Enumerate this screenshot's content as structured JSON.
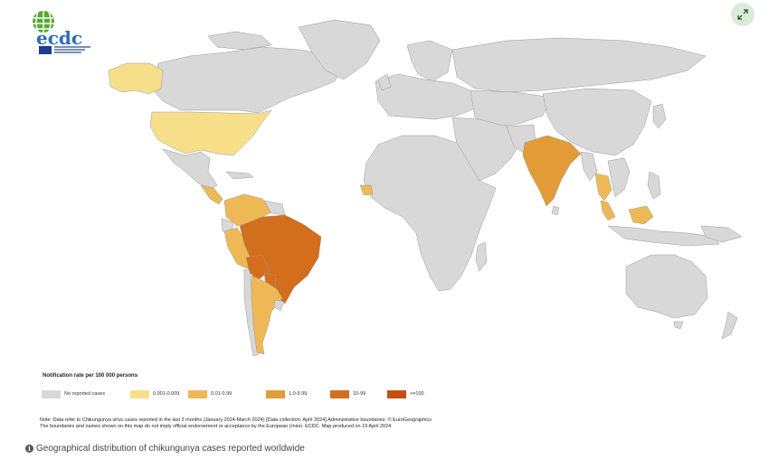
{
  "logo": {
    "text": "ecdc",
    "icon": "ecdc-globe-logo"
  },
  "expand_button": {
    "icon": "expand-arrows-icon"
  },
  "colors": {
    "no_data": "#d8d8d8",
    "border": "#9a9a9a",
    "rate_0001_0009": "#f7df8a",
    "rate_001_099": "#eeb955",
    "rate_10_999": "#e29b37",
    "rate_10_99": "#d36e1c",
    "rate_100_plus": "#c54e14"
  },
  "legend": {
    "title": "Notification rate per 100 000 persons",
    "items": [
      {
        "label": "No reported cases",
        "color": "#d8d8d8"
      },
      {
        "label": "0.001-0.009",
        "color": "#f7df8a"
      },
      {
        "label": "0.01-0.99",
        "color": "#eeb955"
      },
      {
        "label": "1.0-9.99",
        "color": "#e29b37"
      },
      {
        "label": "10-99",
        "color": "#d36e1c"
      },
      {
        "label": ">=100",
        "color": "#c54e14"
      }
    ]
  },
  "note": {
    "line1": "Note: Data refer to Chikungunya virus cases reported in the last 3 months (January 2024-March 2024) [Data collection: April 2024].Administrative boundaries: © EuroGeographics",
    "line2": "The boundaries and names shown on this map do not imply official endorsement or acceptance by the European Union. ECDC. Map produced on 19 April 2024"
  },
  "caption": {
    "icon": "info-circle-icon",
    "text": "Geographical distribution of chikungunya cases reported worldwide"
  },
  "regions": [
    {
      "name": "Alaska",
      "rate_class": "0.001-0.009"
    },
    {
      "name": "United States",
      "rate_class": "0.001-0.009"
    },
    {
      "name": "Brazil",
      "rate_class": "10-99"
    },
    {
      "name": "Paraguay",
      "rate_class": "10-99"
    },
    {
      "name": "Bolivia",
      "rate_class": "10-99"
    },
    {
      "name": "Argentina",
      "rate_class": "0.01-0.99"
    },
    {
      "name": "Peru",
      "rate_class": "0.01-0.99"
    },
    {
      "name": "Colombia",
      "rate_class": "0.01-0.99"
    },
    {
      "name": "India",
      "rate_class": "1.0-9.99"
    },
    {
      "name": "Thailand",
      "rate_class": "0.01-0.99"
    },
    {
      "name": "Malaysia",
      "rate_class": "0.01-0.99"
    }
  ]
}
